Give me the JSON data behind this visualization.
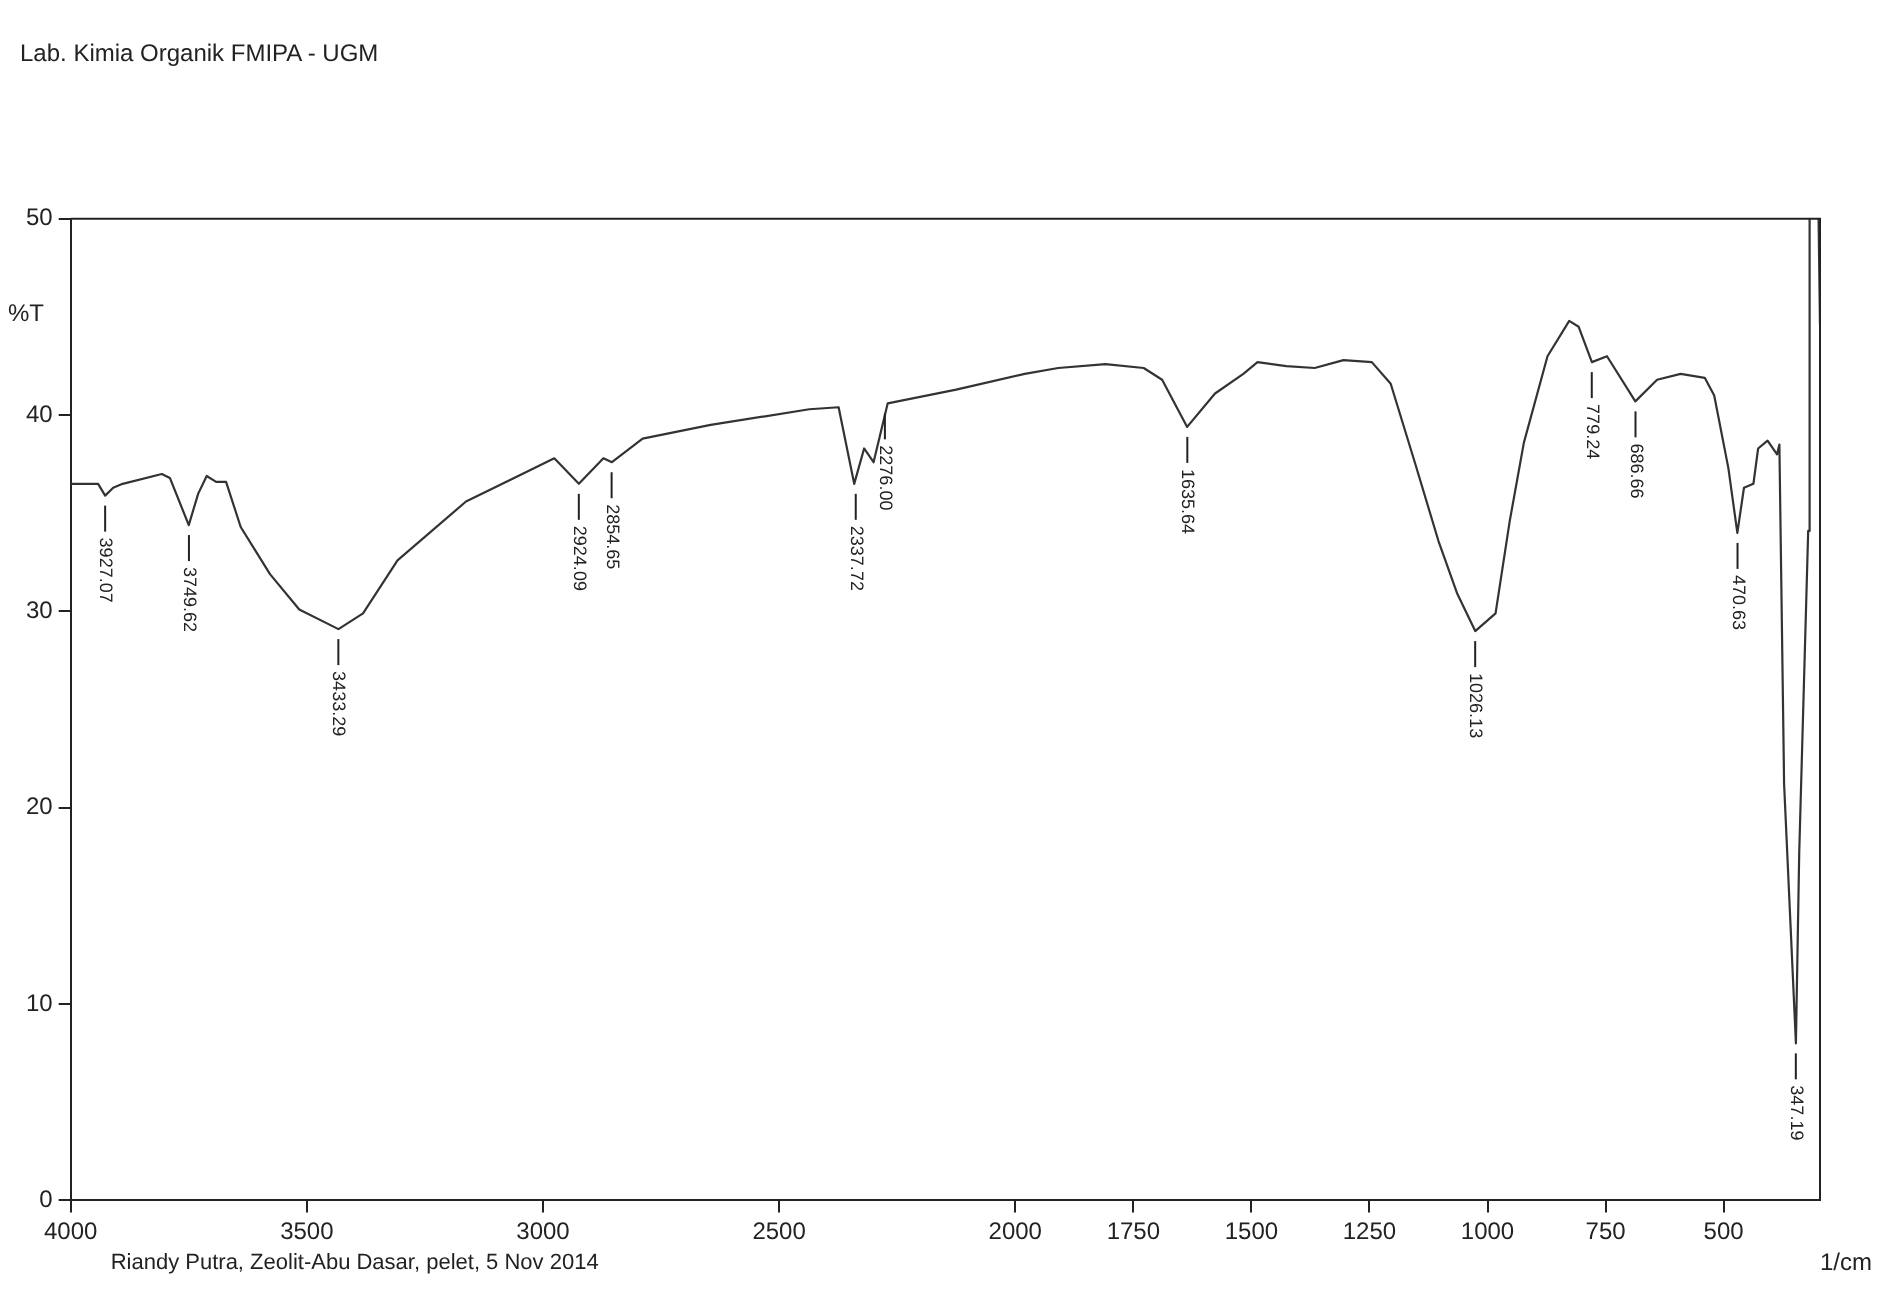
{
  "chart_data": {
    "type": "line",
    "title": "Lab. Kimia Organik FMIPA - UGM",
    "ylabel": "%T",
    "xlabel": "1/cm",
    "xlim": [
      4000,
      296
    ],
    "xticks": [
      4000,
      3500,
      3000,
      2500,
      2000,
      1750,
      1500,
      1250,
      1000,
      750,
      500
    ],
    "ylim": [
      0,
      50
    ],
    "yticks": [
      0,
      10,
      20,
      30,
      40,
      50
    ],
    "grid": false,
    "legend": false,
    "marker": "none",
    "line_style": "solid",
    "series": [
      {
        "color": "#333333",
        "x": [
          4000,
          3942,
          3927,
          3910,
          3890,
          3807,
          3790,
          3750,
          3730,
          3712,
          3692,
          3671,
          3640,
          3578,
          3516,
          3433,
          3381,
          3308,
          3163,
          2976,
          2924,
          2872,
          2854,
          2789,
          2645,
          2436,
          2374,
          2341,
          2320,
          2300,
          2270,
          2125,
          1980,
          1909,
          1809,
          1728,
          1689,
          1636,
          1577,
          1517,
          1487,
          1426,
          1366,
          1305,
          1245,
          1205,
          1154,
          1104,
          1064,
          1026,
          983,
          953,
          923,
          873,
          827,
          807,
          779,
          747,
          687,
          641,
          591,
          540,
          520,
          490,
          471,
          457,
          437,
          427,
          407,
          387,
          382,
          372,
          347,
          340,
          321,
          318,
          310,
          299,
          296
        ],
        "values": [
          36.5,
          36.5,
          35.9,
          36.3,
          36.5,
          37.0,
          36.8,
          34.4,
          36.0,
          36.9,
          36.6,
          36.6,
          34.3,
          31.9,
          30.1,
          29.1,
          29.9,
          32.6,
          35.6,
          37.8,
          36.5,
          37.8,
          37.6,
          38.8,
          39.5,
          40.3,
          40.4,
          36.5,
          38.3,
          37.6,
          40.6,
          41.3,
          42.1,
          42.4,
          42.6,
          42.4,
          41.8,
          39.4,
          41.1,
          42.1,
          42.7,
          42.5,
          42.4,
          42.8,
          42.7,
          41.6,
          37.6,
          33.6,
          30.9,
          29.0,
          29.9,
          34.6,
          38.6,
          43.0,
          44.8,
          44.5,
          42.7,
          43.0,
          40.7,
          41.8,
          42.1,
          41.9,
          41.0,
          37.3,
          34.0,
          36.3,
          36.5,
          38.3,
          38.7,
          38.0,
          38.5,
          21.2,
          8.0,
          17.7,
          34.1,
          50,
          null,
          50,
          44.6
        ]
      }
    ],
    "annotations": [
      {
        "text": "3927.07",
        "x": 3927.07,
        "y": 35.9
      },
      {
        "text": "3749.62",
        "x": 3749.62,
        "y": 34.4
      },
      {
        "text": "3433.29",
        "x": 3433.29,
        "y": 29.1
      },
      {
        "text": "2924.09",
        "x": 2924.09,
        "y": 36.5
      },
      {
        "text": "2854.65",
        "x": 2854.65,
        "y": 37.6
      },
      {
        "text": "2337.72",
        "x": 2337.72,
        "y": 36.5
      },
      {
        "text": "2276.00",
        "x": 2276.0,
        "y": 40.6
      },
      {
        "text": "1635.64",
        "x": 1635.64,
        "y": 39.4
      },
      {
        "text": "1026.13",
        "x": 1026.13,
        "y": 29.0
      },
      {
        "text": "779.24",
        "x": 779.24,
        "y": 42.7
      },
      {
        "text": "686.66",
        "x": 686.66,
        "y": 40.7
      },
      {
        "text": "470.63",
        "x": 470.63,
        "y": 34.0
      },
      {
        "text": "347.19",
        "x": 347.19,
        "y": 8.0
      },
      "Riandy Putra, Zeolit-Abu Dasar, pelet, 5 Nov 2014"
    ]
  }
}
